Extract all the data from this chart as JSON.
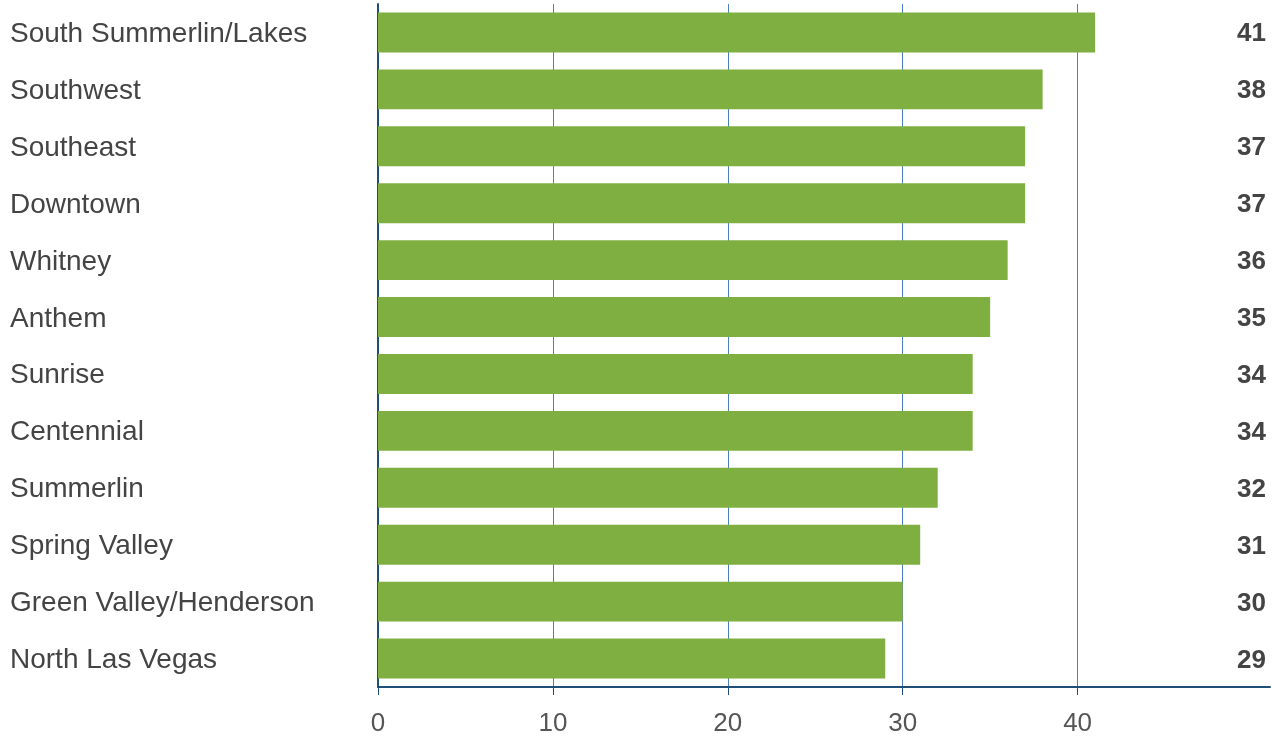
{
  "chart_data": {
    "type": "bar",
    "orientation": "horizontal",
    "categories": [
      "South Summerlin/Lakes",
      "Southwest",
      "Southeast",
      "Downtown",
      "Whitney",
      "Anthem",
      "Sunrise",
      "Centennial",
      "Summerlin",
      "Spring Valley",
      "Green Valley/Henderson",
      "North Las Vegas"
    ],
    "values": [
      41,
      38,
      37,
      37,
      36,
      35,
      34,
      34,
      32,
      31,
      30,
      29
    ],
    "color": "#7faf41",
    "xlim": [
      0,
      51
    ],
    "xticks": [
      0,
      10,
      20,
      30,
      40
    ],
    "grid": "x",
    "data_labels": true
  }
}
